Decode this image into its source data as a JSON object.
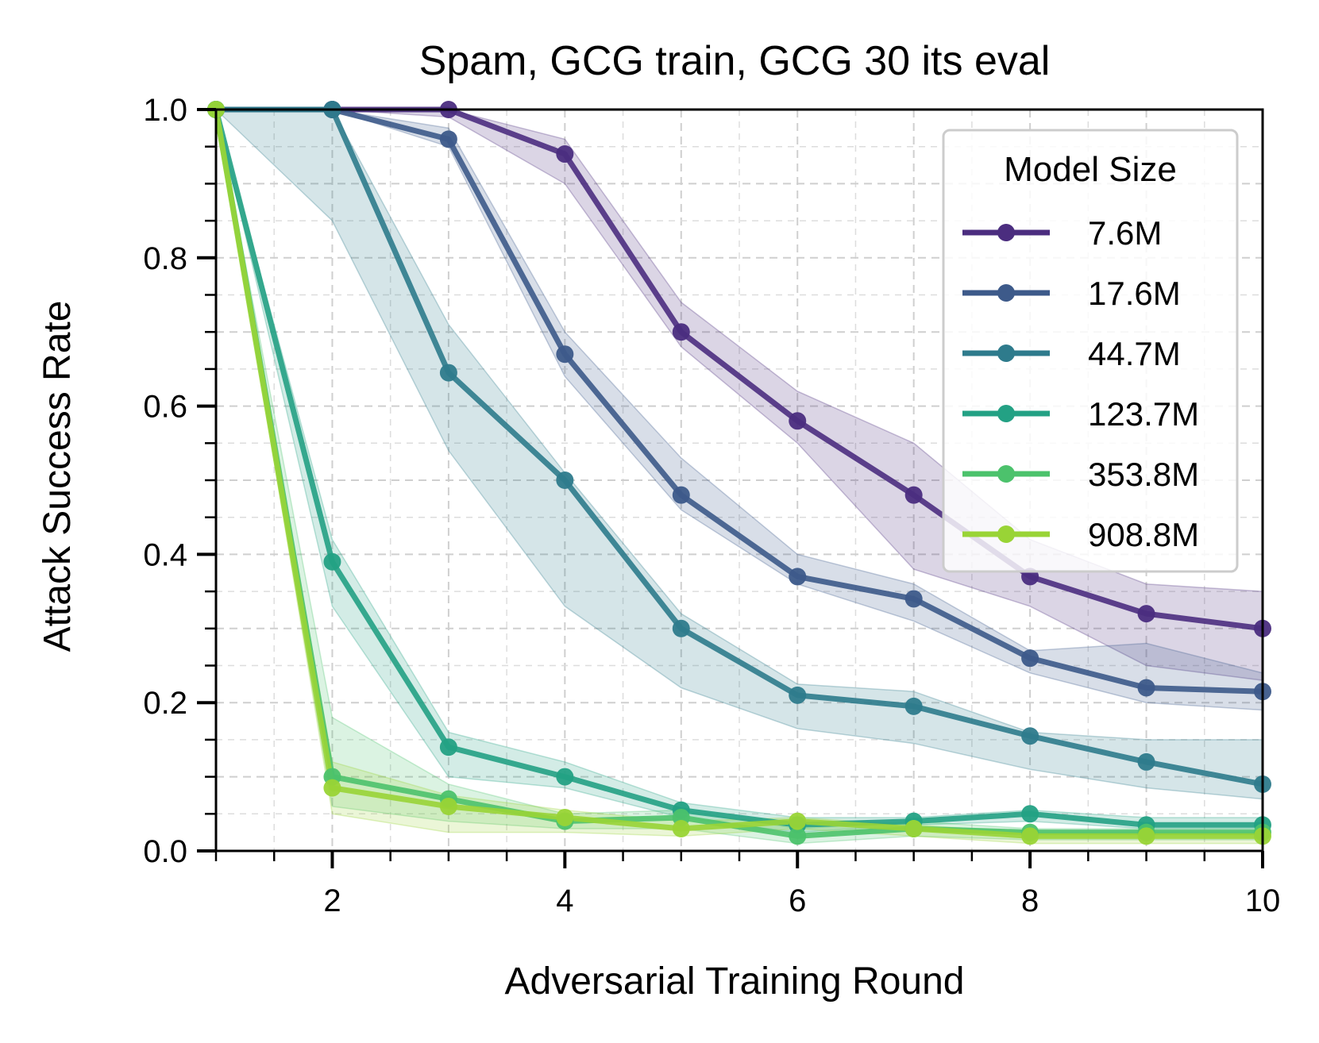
{
  "chart_data": {
    "type": "line",
    "title": "Spam, GCG train, GCG 30 its eval",
    "xlabel": "Adversarial Training Round",
    "ylabel": "Attack Success Rate",
    "xlim": [
      1,
      10
    ],
    "ylim": [
      0,
      1
    ],
    "x_ticks": [
      "2",
      "4",
      "6",
      "8",
      "10"
    ],
    "y_ticks": [
      "0.0",
      "0.2",
      "0.4",
      "0.6",
      "0.8",
      "1.0"
    ],
    "grid": true,
    "legend": {
      "title": "Model Size",
      "placement": "top-right"
    },
    "x": [
      1,
      2,
      3,
      4,
      5,
      6,
      7,
      8,
      9,
      10
    ],
    "series": [
      {
        "name": "7.6M",
        "color": "#4b2d7f",
        "values": [
          1.0,
          1.0,
          1.0,
          0.94,
          0.7,
          0.58,
          0.48,
          0.37,
          0.32,
          0.3
        ],
        "lower": [
          1.0,
          1.0,
          0.99,
          0.9,
          0.68,
          0.55,
          0.38,
          0.33,
          0.25,
          0.23
        ],
        "upper": [
          1.0,
          1.0,
          1.0,
          0.96,
          0.74,
          0.62,
          0.55,
          0.42,
          0.36,
          0.35
        ]
      },
      {
        "name": "17.6M",
        "color": "#3d5a8a",
        "values": [
          1.0,
          1.0,
          0.96,
          0.67,
          0.48,
          0.37,
          0.34,
          0.26,
          0.22,
          0.215
        ],
        "lower": [
          1.0,
          1.0,
          0.95,
          0.64,
          0.46,
          0.36,
          0.31,
          0.24,
          0.2,
          0.19
        ],
        "upper": [
          1.0,
          1.0,
          0.975,
          0.7,
          0.53,
          0.4,
          0.36,
          0.27,
          0.28,
          0.24
        ]
      },
      {
        "name": "44.7M",
        "color": "#2e7b8c",
        "values": [
          1.0,
          1.0,
          0.645,
          0.5,
          0.3,
          0.21,
          0.195,
          0.155,
          0.12,
          0.09
        ],
        "lower": [
          1.0,
          0.85,
          0.54,
          0.33,
          0.22,
          0.165,
          0.145,
          0.11,
          0.085,
          0.07
        ],
        "upper": [
          1.0,
          1.0,
          0.71,
          0.51,
          0.32,
          0.225,
          0.215,
          0.16,
          0.15,
          0.15
        ]
      },
      {
        "name": "123.7M",
        "color": "#23a184",
        "values": [
          1.0,
          0.39,
          0.14,
          0.1,
          0.055,
          0.035,
          0.04,
          0.05,
          0.035,
          0.035
        ],
        "lower": [
          1.0,
          0.33,
          0.1,
          0.085,
          0.045,
          0.025,
          0.035,
          0.04,
          0.03,
          0.03
        ],
        "upper": [
          1.0,
          0.42,
          0.16,
          0.12,
          0.065,
          0.045,
          0.045,
          0.055,
          0.045,
          0.045
        ]
      },
      {
        "name": "353.8M",
        "color": "#4cc26c",
        "values": [
          1.0,
          0.1,
          0.07,
          0.04,
          0.045,
          0.02,
          0.03,
          0.025,
          0.025,
          0.025
        ],
        "lower": [
          1.0,
          0.06,
          0.04,
          0.03,
          0.03,
          0.01,
          0.02,
          0.015,
          0.015,
          0.015
        ],
        "upper": [
          1.0,
          0.18,
          0.09,
          0.05,
          0.055,
          0.03,
          0.04,
          0.03,
          0.03,
          0.03
        ]
      },
      {
        "name": "908.8M",
        "color": "#99d436",
        "values": [
          1.0,
          0.085,
          0.06,
          0.045,
          0.03,
          0.04,
          0.03,
          0.02,
          0.02,
          0.02
        ],
        "lower": [
          1.0,
          0.05,
          0.025,
          0.025,
          0.02,
          0.03,
          0.02,
          0.01,
          0.01,
          0.01
        ],
        "upper": [
          1.0,
          0.12,
          0.075,
          0.055,
          0.04,
          0.045,
          0.035,
          0.025,
          0.025,
          0.025
        ]
      }
    ]
  }
}
